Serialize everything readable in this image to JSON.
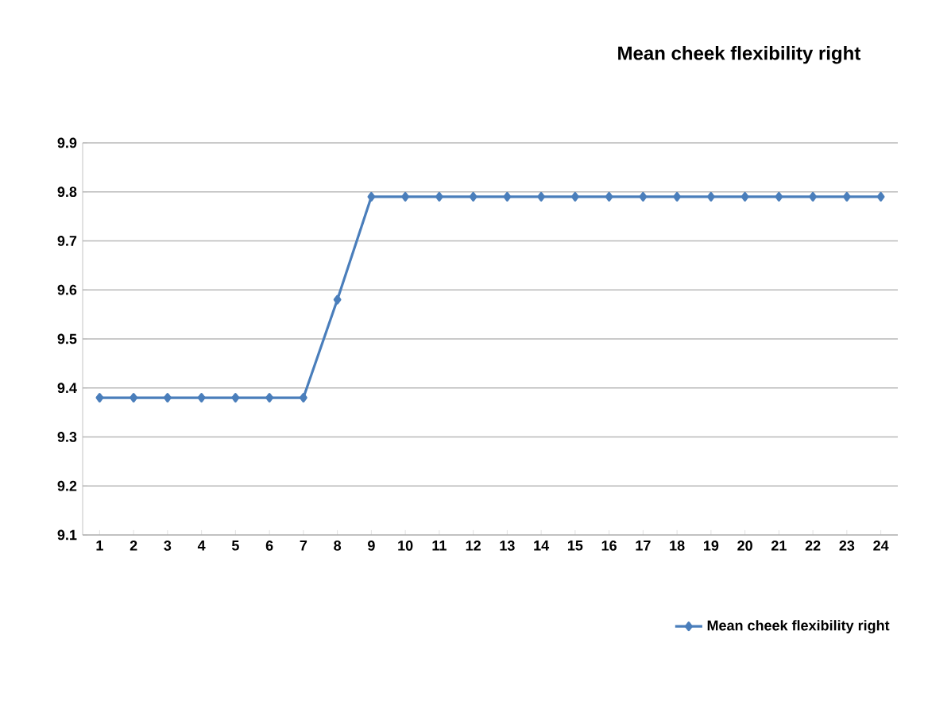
{
  "chart_data": {
    "type": "line",
    "title": "Mean cheek flexibility right",
    "categories": [
      "1",
      "2",
      "3",
      "4",
      "5",
      "6",
      "7",
      "8",
      "9",
      "10",
      "11",
      "12",
      "13",
      "14",
      "15",
      "16",
      "17",
      "18",
      "19",
      "20",
      "21",
      "22",
      "23",
      "24"
    ],
    "series": [
      {
        "name": "Mean cheek flexibility right",
        "color": "#4a7ebb",
        "values": [
          9.38,
          9.38,
          9.38,
          9.38,
          9.38,
          9.38,
          9.38,
          9.58,
          9.79,
          9.79,
          9.79,
          9.79,
          9.79,
          9.79,
          9.79,
          9.79,
          9.79,
          9.79,
          9.79,
          9.79,
          9.79,
          9.79,
          9.79,
          9.79
        ]
      }
    ],
    "ylim": [
      9.1,
      9.9
    ],
    "yticks": [
      9.1,
      9.2,
      9.3,
      9.4,
      9.5,
      9.6,
      9.7,
      9.8,
      9.9
    ],
    "grid": "y",
    "legend": "bottom right",
    "marker": "diamond",
    "line_style": "solid"
  }
}
